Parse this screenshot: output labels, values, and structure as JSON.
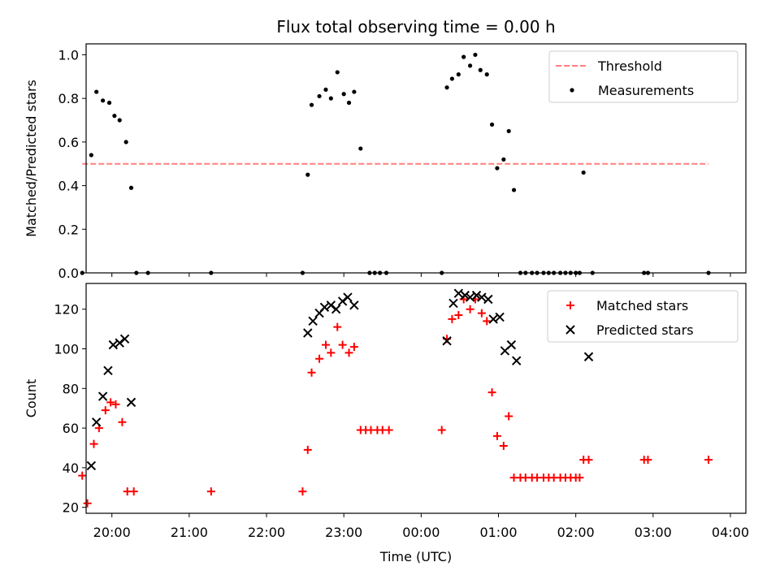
{
  "figure": {
    "title": "Flux total observing time = 0.00 h"
  },
  "chart_data": [
    {
      "type": "scatter",
      "title": "Flux total observing time = 0.00 h",
      "xlabel": "",
      "ylabel": "Matched/Predicted stars",
      "xlim": [
        "19:40",
        "04:12"
      ],
      "ylim": [
        0.0,
        1.05
      ],
      "yticks": [
        0.0,
        0.2,
        0.4,
        0.6,
        0.8,
        1.0
      ],
      "ytick_labels": [
        "0.0",
        "0.2",
        "0.4",
        "0.6",
        "0.8",
        "1.0"
      ],
      "legend_position": "top-right",
      "threshold": {
        "name": "Threshold",
        "value": 0.5,
        "x_range": [
          "19:37",
          "03:43"
        ],
        "color": "#ff7f7f",
        "style": "dashed"
      },
      "series": [
        {
          "name": "Measurements",
          "color": "#000000",
          "marker": "dot",
          "x": [
            "19:37",
            "19:44",
            "19:48",
            "19:53",
            "19:58",
            "20:02",
            "20:06",
            "20:11",
            "20:15",
            "20:19",
            "20:28",
            "21:17",
            "22:28",
            "22:32",
            "22:35",
            "22:41",
            "22:46",
            "22:50",
            "22:55",
            "23:00",
            "23:04",
            "23:08",
            "23:13",
            "23:20",
            "23:24",
            "23:28",
            "23:33",
            "00:16",
            "00:20",
            "00:24",
            "00:29",
            "00:33",
            "00:38",
            "00:42",
            "00:46",
            "00:51",
            "00:55",
            "00:59",
            "01:04",
            "01:08",
            "01:12",
            "01:17",
            "01:21",
            "01:26",
            "01:30",
            "01:35",
            "01:39",
            "01:43",
            "01:48",
            "01:52",
            "01:56",
            "02:00",
            "02:03",
            "02:06",
            "02:13",
            "02:53",
            "02:56",
            "03:43"
          ],
          "y": [
            0.0,
            0.54,
            0.83,
            0.79,
            0.78,
            0.72,
            0.7,
            0.6,
            0.39,
            0.0,
            0.0,
            0.0,
            0.0,
            0.45,
            0.77,
            0.81,
            0.84,
            0.8,
            0.92,
            0.82,
            0.78,
            0.83,
            0.57,
            0.0,
            0.0,
            0.0,
            0.0,
            0.0,
            0.85,
            0.89,
            0.91,
            0.99,
            0.95,
            1.0,
            0.93,
            0.91,
            0.68,
            0.48,
            0.52,
            0.65,
            0.38,
            0.0,
            0.0,
            0.0,
            0.0,
            0.0,
            0.0,
            0.0,
            0.0,
            0.0,
            0.0,
            0.0,
            0.0,
            0.46,
            0.0,
            0.0,
            0.0,
            0.0
          ]
        }
      ]
    },
    {
      "type": "scatter",
      "xlabel": "Time (UTC)",
      "ylabel": "Count",
      "xlim": [
        "19:40",
        "04:12"
      ],
      "ylim": [
        17,
        133
      ],
      "yticks": [
        20,
        40,
        60,
        80,
        100,
        120
      ],
      "ytick_labels": [
        "20",
        "40",
        "60",
        "80",
        "100",
        "120"
      ],
      "xticks": [
        "20:00",
        "21:00",
        "22:00",
        "23:00",
        "00:00",
        "01:00",
        "02:00",
        "03:00",
        "04:00"
      ],
      "legend_position": "top-right",
      "series": [
        {
          "name": "Matched stars",
          "color": "#ff0000",
          "marker": "plus",
          "x": [
            "19:37",
            "19:41",
            "19:46",
            "19:50",
            "19:55",
            "19:59",
            "20:03",
            "20:08",
            "20:12",
            "20:17",
            "21:17",
            "22:28",
            "22:32",
            "22:35",
            "22:41",
            "22:46",
            "22:50",
            "22:55",
            "22:59",
            "23:04",
            "23:08",
            "23:13",
            "23:17",
            "23:21",
            "23:26",
            "23:30",
            "23:35",
            "00:16",
            "00:20",
            "00:24",
            "00:29",
            "00:33",
            "00:38",
            "00:42",
            "00:47",
            "00:51",
            "00:55",
            "00:59",
            "01:04",
            "01:08",
            "01:12",
            "01:17",
            "01:21",
            "01:26",
            "01:30",
            "01:35",
            "01:39",
            "01:43",
            "01:48",
            "01:52",
            "01:56",
            "02:00",
            "02:03",
            "02:06",
            "02:10",
            "02:53",
            "02:56",
            "03:43"
          ],
          "y": [
            36,
            22,
            52,
            60,
            69,
            73,
            72,
            63,
            28,
            28,
            28,
            28,
            49,
            88,
            95,
            102,
            98,
            111,
            102,
            98,
            101,
            59,
            59,
            59,
            59,
            59,
            59,
            59,
            105,
            115,
            117,
            125,
            120,
            125,
            118,
            114,
            78,
            56,
            51,
            66,
            35,
            35,
            35,
            35,
            35,
            35,
            35,
            35,
            35,
            35,
            35,
            35,
            35,
            44,
            44,
            44,
            44,
            44
          ]
        },
        {
          "name": "Predicted stars",
          "color": "#000000",
          "marker": "x",
          "x": [
            "19:44",
            "19:48",
            "19:53",
            "19:57",
            "20:01",
            "20:06",
            "20:10",
            "20:15",
            "22:32",
            "22:36",
            "22:41",
            "22:45",
            "22:50",
            "22:54",
            "22:59",
            "23:03",
            "23:08",
            "00:20",
            "00:25",
            "00:29",
            "00:34",
            "00:38",
            "00:43",
            "00:47",
            "00:52",
            "00:56",
            "01:01",
            "01:05",
            "01:10",
            "01:14",
            "02:10"
          ],
          "y": [
            41,
            63,
            76,
            89,
            102,
            103,
            105,
            73,
            108,
            114,
            118,
            121,
            122,
            120,
            124,
            126,
            122,
            104,
            123,
            128,
            127,
            126,
            127,
            126,
            125,
            115,
            116,
            99,
            102,
            94,
            96
          ]
        }
      ]
    }
  ]
}
